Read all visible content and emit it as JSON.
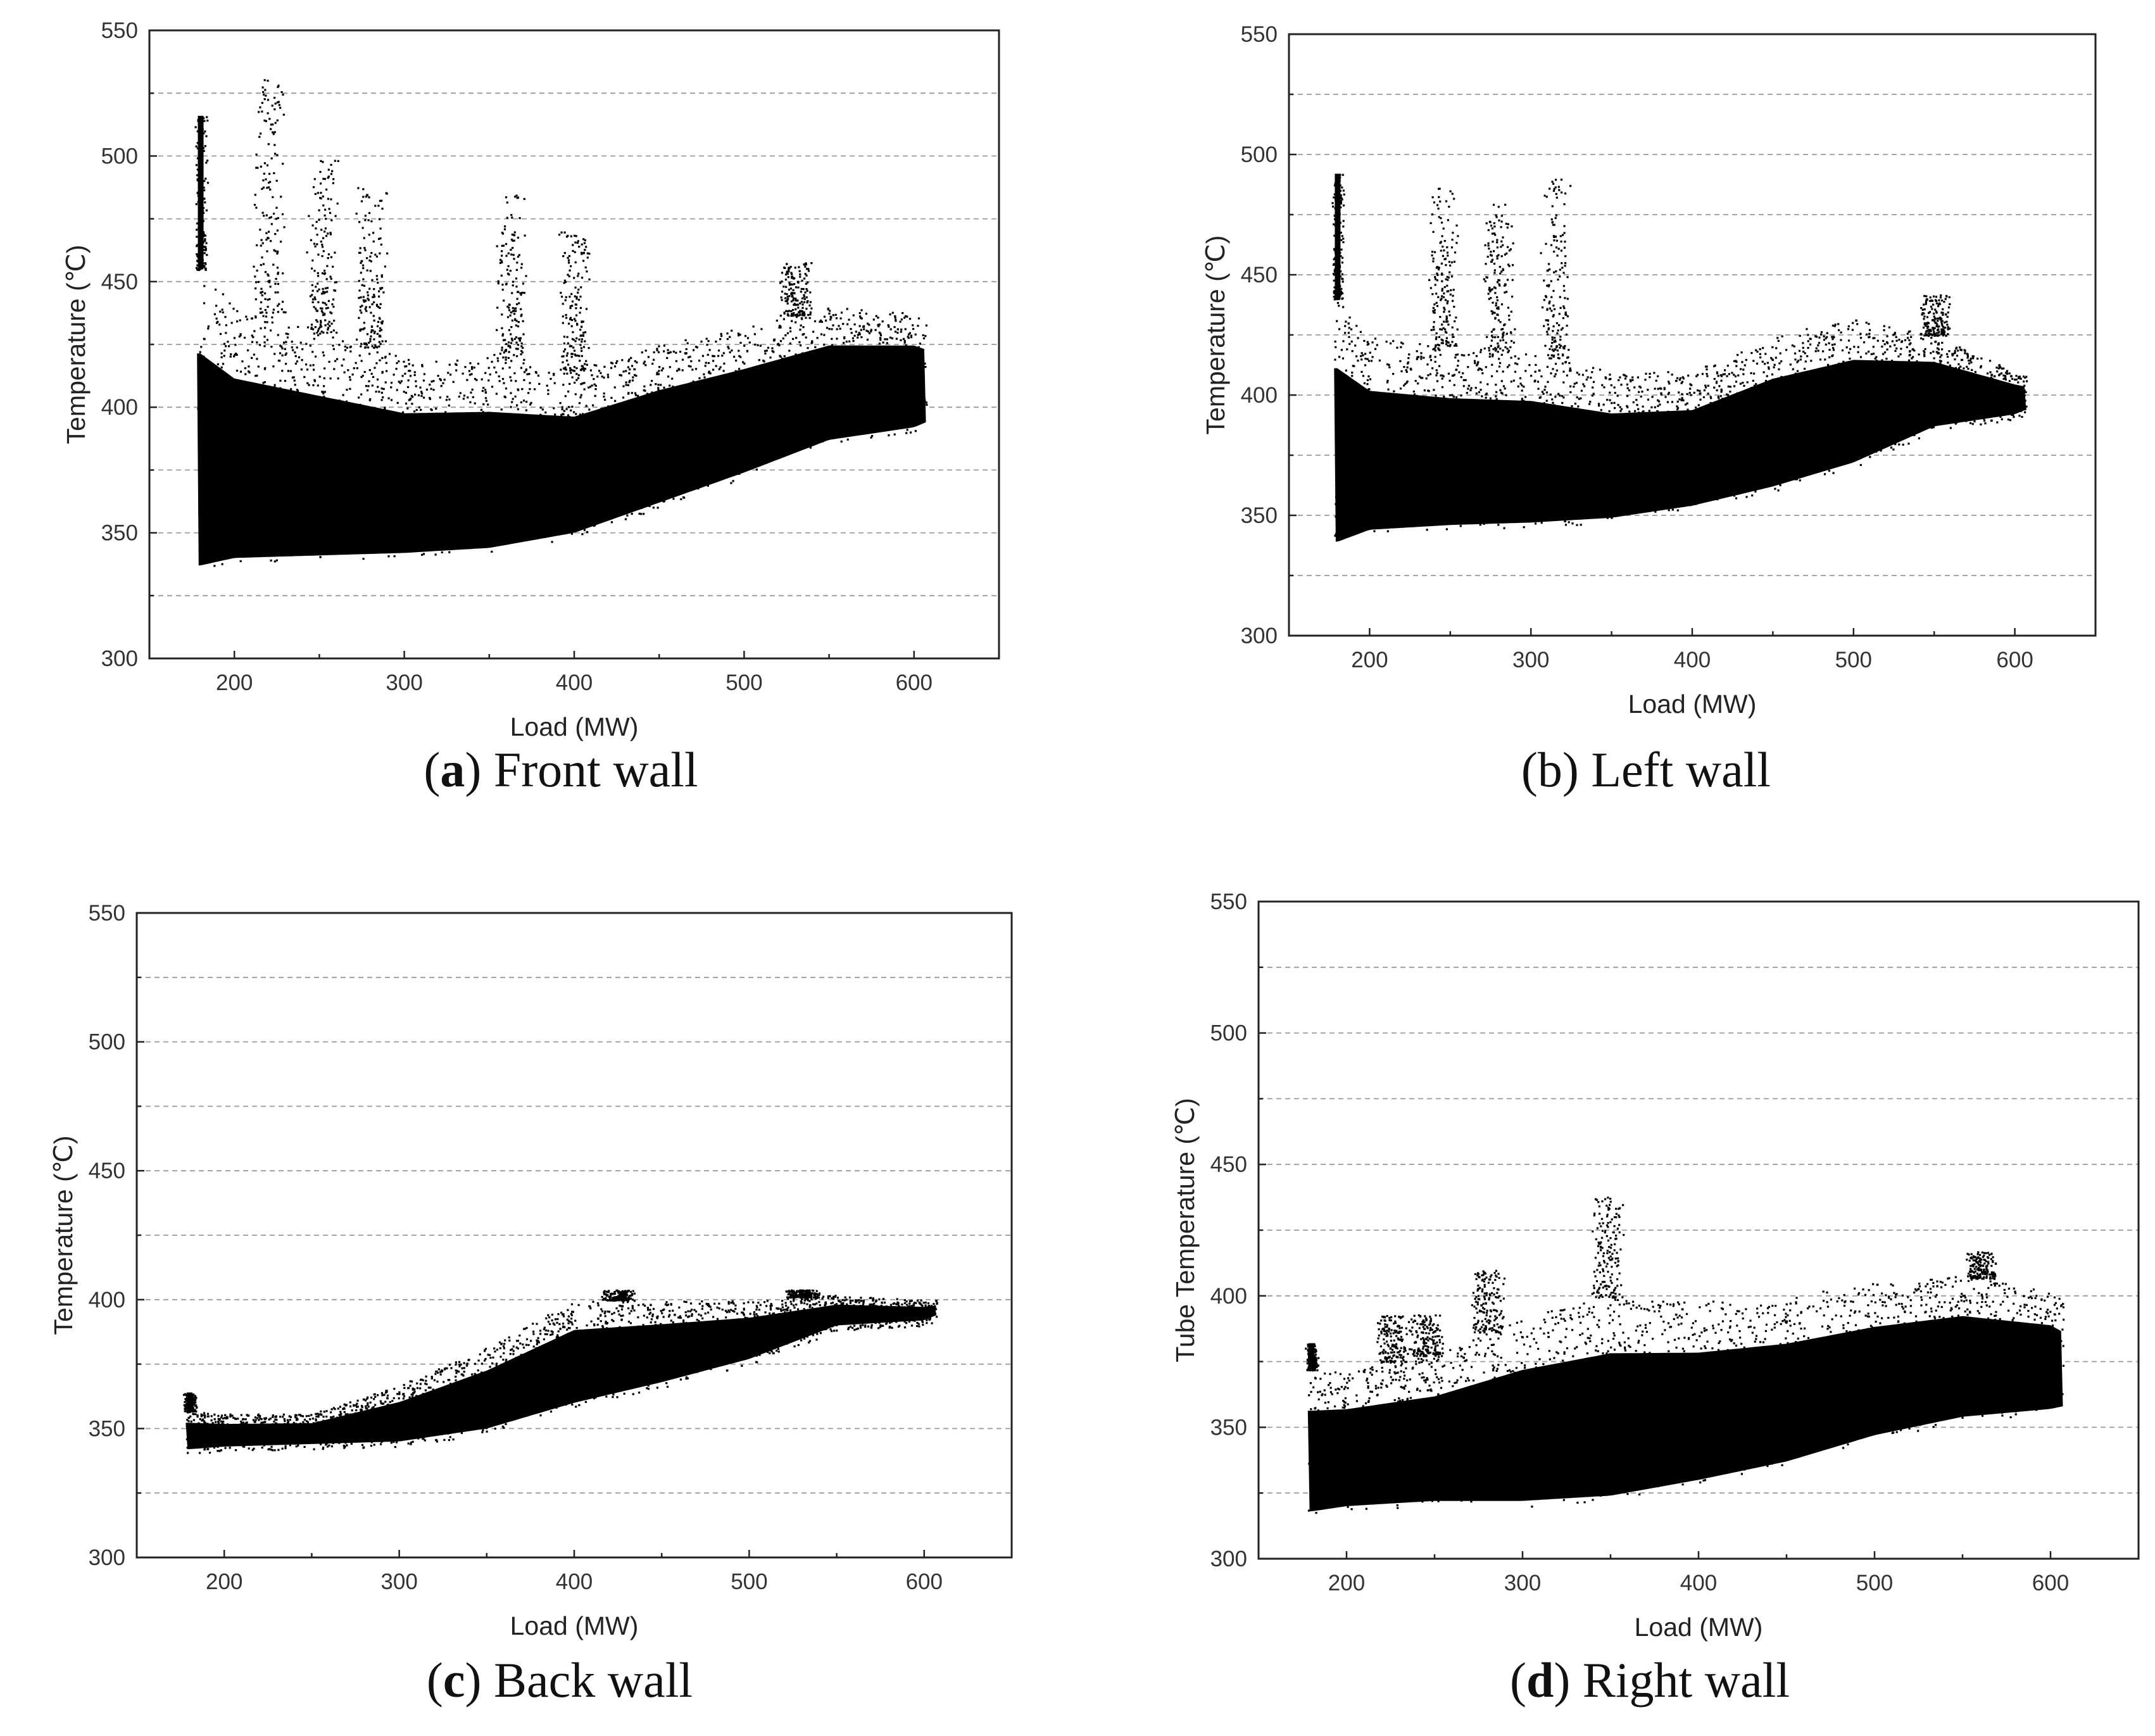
{
  "figure": {
    "colors": {
      "points": "#000000",
      "grid": "#9a9a9a",
      "frame": "#222222",
      "background": "#ffffff"
    }
  },
  "chart_data": [
    {
      "id": "a",
      "type": "scatter",
      "caption_letter": "a",
      "caption_open": "(",
      "caption_rest": ") Front wall",
      "xlabel": "Load (MW)",
      "ylabel": "Temperature (℃)",
      "xlim": [
        150,
        650
      ],
      "ylim": [
        300,
        550
      ],
      "xticks": [
        200,
        300,
        400,
        500,
        600
      ],
      "yticks": [
        300,
        350,
        400,
        450,
        500,
        550
      ],
      "grid": "horizontal-dashed",
      "x_range_of_data": [
        178,
        607
      ],
      "envelope": {
        "x": [
          180,
          200,
          250,
          300,
          350,
          400,
          450,
          500,
          550,
          600,
          607
        ],
        "lower": [
          335,
          338,
          339,
          340,
          342,
          348,
          360,
          372,
          385,
          390,
          392
        ],
        "upper": [
          455,
          440,
          430,
          420,
          420,
          415,
          425,
          432,
          440,
          438,
          435
        ]
      },
      "spikes": [
        {
          "x": 180,
          "peak": 516
        },
        {
          "x": 220,
          "peak": 532
        },
        {
          "x": 252,
          "peak": 500
        },
        {
          "x": 280,
          "peak": 488
        },
        {
          "x": 362,
          "peak": 486
        },
        {
          "x": 400,
          "peak": 470
        },
        {
          "x": 530,
          "peak": 458
        }
      ]
    },
    {
      "id": "b",
      "type": "scatter",
      "caption_letter": "b",
      "caption_open": "(",
      "caption_rest": ") Left wall",
      "caption_plain": true,
      "xlabel": "Load (MW)",
      "ylabel": "Temperature (℃)",
      "xlim": [
        150,
        650
      ],
      "ylim": [
        300,
        550
      ],
      "xticks": [
        200,
        300,
        400,
        500,
        600
      ],
      "yticks": [
        300,
        350,
        400,
        450,
        500,
        550
      ],
      "grid": "horizontal-dashed",
      "x_range_of_data": [
        178,
        607
      ],
      "envelope": {
        "x": [
          180,
          200,
          250,
          300,
          350,
          400,
          450,
          500,
          550,
          600,
          607
        ],
        "lower": [
          337,
          342,
          344,
          345,
          347,
          352,
          360,
          370,
          385,
          390,
          392
        ],
        "upper": [
          440,
          425,
          420,
          418,
          410,
          410,
          425,
          432,
          425,
          410,
          408
        ]
      },
      "spikes": [
        {
          "x": 180,
          "peak": 492
        },
        {
          "x": 245,
          "peak": 488
        },
        {
          "x": 280,
          "peak": 480
        },
        {
          "x": 315,
          "peak": 490
        },
        {
          "x": 550,
          "peak": 442
        }
      ]
    },
    {
      "id": "c",
      "type": "scatter",
      "caption_letter": "c",
      "caption_open": "(",
      "caption_rest": ") Back wall",
      "xlabel": "Load (MW)",
      "ylabel": "Temperature (℃)",
      "xlim": [
        150,
        650
      ],
      "ylim": [
        300,
        550
      ],
      "xticks": [
        200,
        300,
        400,
        500,
        600
      ],
      "yticks": [
        300,
        350,
        400,
        450,
        500,
        550
      ],
      "grid": "horizontal-dashed",
      "x_range_of_data": [
        178,
        607
      ],
      "envelope": {
        "x": [
          180,
          200,
          250,
          300,
          350,
          400,
          450,
          500,
          550,
          600,
          607
        ],
        "lower": [
          340,
          341,
          342,
          343,
          348,
          358,
          366,
          375,
          388,
          390,
          392
        ],
        "upper": [
          357,
          356,
          356,
          367,
          382,
          400,
          400,
          400,
          402,
          400,
          400
        ]
      },
      "spikes": [
        {
          "x": 180,
          "peak": 364
        },
        {
          "x": 425,
          "peak": 404
        },
        {
          "x": 530,
          "peak": 404
        }
      ]
    },
    {
      "id": "d",
      "type": "scatter",
      "caption_letter": "d",
      "caption_open": "(",
      "caption_rest": ") Right wall",
      "xlabel": "Load (MW)",
      "ylabel": "Tube Temperature (℃)",
      "xlim": [
        150,
        650
      ],
      "ylim": [
        300,
        550
      ],
      "xticks": [
        200,
        300,
        400,
        500,
        600
      ],
      "yticks": [
        300,
        350,
        400,
        450,
        500,
        550
      ],
      "grid": "horizontal-dashed",
      "x_range_of_data": [
        178,
        607
      ],
      "envelope": {
        "x": [
          180,
          200,
          250,
          300,
          350,
          400,
          450,
          500,
          550,
          600,
          607
        ],
        "lower": [
          316,
          318,
          320,
          320,
          322,
          328,
          335,
          345,
          352,
          355,
          356
        ],
        "upper": [
          372,
          372,
          378,
          392,
          400,
          398,
          400,
          405,
          408,
          402,
          398
        ]
      },
      "spikes": [
        {
          "x": 180,
          "peak": 382
        },
        {
          "x": 225,
          "peak": 393
        },
        {
          "x": 245,
          "peak": 393
        },
        {
          "x": 280,
          "peak": 410
        },
        {
          "x": 348,
          "peak": 438
        },
        {
          "x": 560,
          "peak": 417
        }
      ]
    }
  ]
}
